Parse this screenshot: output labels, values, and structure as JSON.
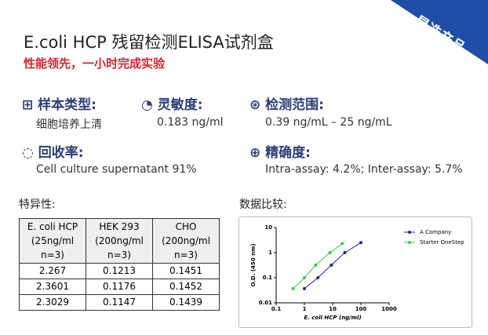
{
  "header": {
    "title": "E.coli HCP 残留检测ELISA试剂盒",
    "subtitle": "性能领先，一小时完成实验",
    "badge": "星选产品"
  },
  "features": [
    {
      "label": "样本类型:",
      "value": "细胞培养上清"
    },
    {
      "label": "灵敏度:",
      "value": "0.183 ng/ml"
    },
    {
      "label": "检测范围:",
      "value": "0.39 ng/mL – 25 ng/mL"
    },
    {
      "label": "回收率:",
      "value": "Cell culture supernatant 91%"
    },
    {
      "label": "精确度:",
      "value": "Intra-assay: 4.2%; Inter-assay: 5.7%"
    }
  ],
  "specificity": {
    "title": "特异性:",
    "headers": [
      "E. coli HCP (25ng/ml n=3)",
      "HEK 293 (200ng/ml n=3)",
      "CHO (200ng/ml n=3)"
    ],
    "rows": [
      [
        "2.267",
        "0.1213",
        "0.1451"
      ],
      [
        "2.3601",
        "0.1176",
        "0.1452"
      ],
      [
        "2.3029",
        "0.1147",
        "0.1439"
      ]
    ]
  },
  "comparison_title": "数据比较:",
  "chart_data": {
    "type": "line",
    "x_label": "E. coli HCP (ng/ml)",
    "y_label": "O.D. (450 nm)",
    "log_x": true,
    "log_y": true,
    "xlim": [
      0.1,
      1000
    ],
    "xticks": [
      0.1,
      1,
      10,
      100,
      1000
    ],
    "ylim": [
      0.01,
      10
    ],
    "yticks": [
      0.01,
      0.1,
      1,
      10
    ],
    "legend": "upper right",
    "series": [
      {
        "name": "A Company",
        "color": "#1f2a8c",
        "x": [
          1,
          3,
          9,
          27,
          100
        ],
        "values": [
          0.037,
          0.1,
          0.32,
          1,
          2.5
        ]
      },
      {
        "name": "Starter OneStep",
        "color": "#33cc44",
        "x": [
          0.4,
          1,
          2.5,
          8,
          22
        ],
        "values": [
          0.037,
          0.1,
          0.32,
          1,
          2.3
        ]
      }
    ]
  }
}
